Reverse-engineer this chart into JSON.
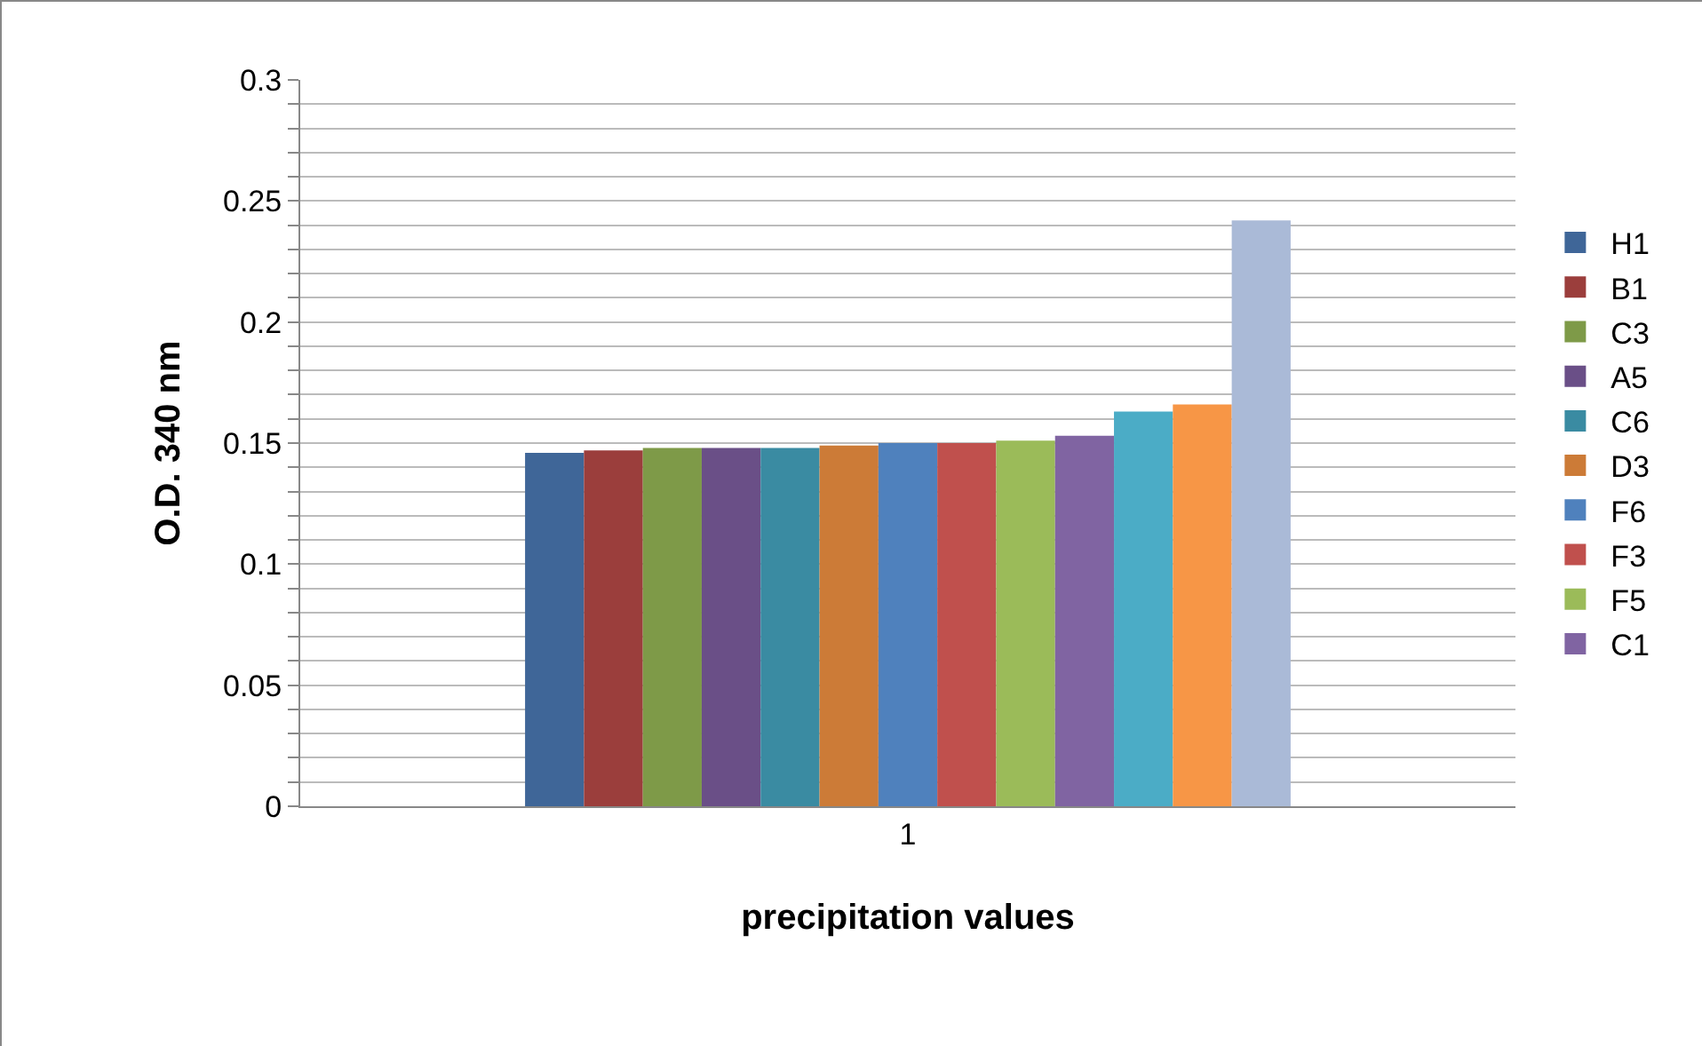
{
  "chart_data": {
    "type": "bar",
    "xlabel": "precipitation values",
    "ylabel": "O.D. 340 nm",
    "categories": [
      "1"
    ],
    "ylim": [
      0,
      0.3
    ],
    "yticks": [
      0,
      {
        "value": 0.01,
        "label": null
      },
      {
        "value": 0.02,
        "label": null
      },
      {
        "value": 0.03,
        "label": null
      },
      {
        "value": 0.04,
        "label": null
      },
      0.05,
      {
        "value": 0.06,
        "label": null
      },
      {
        "value": 0.07,
        "label": null
      },
      {
        "value": 0.08,
        "label": null
      },
      {
        "value": 0.09,
        "label": null
      },
      0.1,
      {
        "value": 0.11,
        "label": null
      },
      {
        "value": 0.12,
        "label": null
      },
      {
        "value": 0.13,
        "label": null
      },
      {
        "value": 0.14,
        "label": null
      },
      0.15,
      {
        "value": 0.16,
        "label": null
      },
      {
        "value": 0.17,
        "label": null
      },
      {
        "value": 0.18,
        "label": null
      },
      {
        "value": 0.19,
        "label": null
      },
      0.2,
      {
        "value": 0.21,
        "label": null
      },
      {
        "value": 0.22,
        "label": null
      },
      {
        "value": 0.23,
        "label": null
      },
      {
        "value": 0.24,
        "label": null
      },
      0.25,
      {
        "value": 0.26,
        "label": null
      },
      {
        "value": 0.27,
        "label": null
      },
      {
        "value": 0.28,
        "label": null
      },
      {
        "value": 0.29,
        "label": null
      },
      0.3
    ],
    "grid": "y",
    "legend": "right",
    "series": [
      {
        "name": "H1",
        "color": "#3f6698",
        "values": [
          0.146
        ]
      },
      {
        "name": "B1",
        "color": "#9b3e3c",
        "values": [
          0.147
        ]
      },
      {
        "name": "C3",
        "color": "#7e9a48",
        "values": [
          0.148
        ]
      },
      {
        "name": "A5",
        "color": "#6a4f87",
        "values": [
          0.148
        ]
      },
      {
        "name": "C6",
        "color": "#3a8ba2",
        "values": [
          0.148
        ]
      },
      {
        "name": "D3",
        "color": "#cc7b37",
        "values": [
          0.149
        ]
      },
      {
        "name": "F6",
        "color": "#4f81bd",
        "values": [
          0.15
        ]
      },
      {
        "name": "F3",
        "color": "#c0504d",
        "values": [
          0.15
        ]
      },
      {
        "name": "F5",
        "color": "#9bbb59",
        "values": [
          0.151
        ]
      },
      {
        "name": "C1",
        "color": "#8064a2",
        "values": [
          0.153
        ]
      },
      {
        "color": "#4bacc6",
        "values": [
          0.163
        ]
      },
      {
        "color": "#f79646",
        "values": [
          0.166
        ]
      },
      {
        "color": "#aabad7",
        "values": [
          0.242
        ]
      }
    ]
  }
}
